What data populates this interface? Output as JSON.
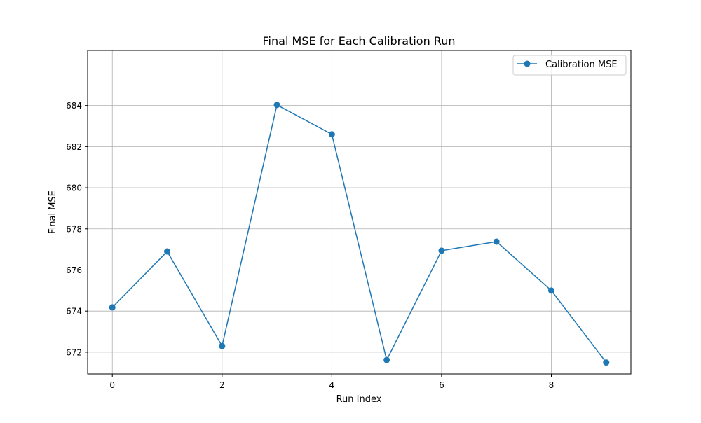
{
  "chart_data": {
    "type": "line",
    "title": "Final MSE for Each Calibration Run",
    "xlabel": "Run Index",
    "ylabel": "Final MSE",
    "x": [
      0,
      1,
      2,
      3,
      4,
      5,
      6,
      7,
      8,
      9
    ],
    "series": [
      {
        "name": "Calibration MSE",
        "values": [
          674.18,
          676.9,
          672.3,
          684.03,
          682.6,
          671.62,
          676.94,
          677.38,
          675.0,
          671.5
        ],
        "color": "#1f77b4",
        "marker": "circle"
      }
    ],
    "xlim": [
      -0.45,
      9.45
    ],
    "ylim": [
      670.94,
      686.68
    ],
    "xticks": [
      0,
      2,
      4,
      6,
      8
    ],
    "yticks": [
      672,
      674,
      676,
      678,
      680,
      682,
      684
    ],
    "xtick_labels": [
      "0",
      "2",
      "4",
      "6",
      "8"
    ],
    "ytick_labels": [
      "672",
      "674",
      "676",
      "678",
      "680",
      "682",
      "684"
    ],
    "grid": true,
    "legend_position": "top-right"
  }
}
